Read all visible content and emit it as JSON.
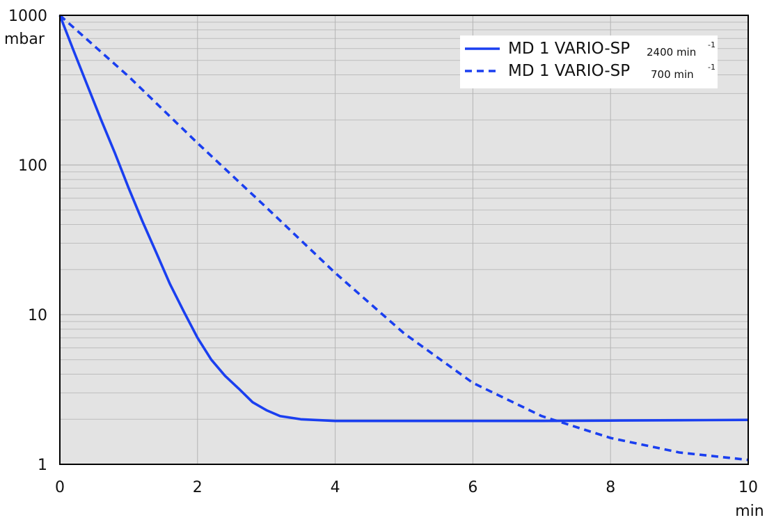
{
  "chart_data": {
    "type": "line",
    "title": "",
    "xlabel": "",
    "ylabel": "",
    "x_unit": "min",
    "y_unit": "mbar",
    "xlim": [
      0,
      10
    ],
    "ylim": [
      1,
      1000
    ],
    "yscale": "log",
    "grid": true,
    "legend_position": "top-right",
    "x_ticks": [
      "0",
      "2",
      "4",
      "6",
      "8",
      "10"
    ],
    "y_ticks": [
      "1",
      "10",
      "100",
      "1000"
    ],
    "series": [
      {
        "name": "MD 1 VARIO-SP",
        "speed": "2400 min",
        "speed_exp": "-1",
        "line_style": "solid",
        "color": "#1a3ff0",
        "x": [
          0,
          0.2,
          0.4,
          0.6,
          0.8,
          1.0,
          1.2,
          1.4,
          1.6,
          1.8,
          2.0,
          2.2,
          2.4,
          2.6,
          2.8,
          3.0,
          3.2,
          3.5,
          4.0,
          5.0,
          6.0,
          7.0,
          8.0,
          9.0,
          10.0
        ],
        "y": [
          1000,
          580,
          340,
          200,
          120,
          70,
          42,
          26,
          16,
          10.5,
          7.0,
          5.0,
          3.9,
          3.2,
          2.6,
          2.3,
          2.1,
          2.0,
          1.95,
          1.95,
          1.95,
          1.95,
          1.96,
          1.97,
          1.98
        ]
      },
      {
        "name": "MD 1 VARIO-SP",
        "speed": "700 min",
        "speed_exp": "-1",
        "line_style": "dashed",
        "color": "#1a3ff0",
        "x": [
          0,
          1,
          2,
          3,
          4,
          5,
          6,
          7,
          8,
          9,
          10
        ],
        "y": [
          1000,
          390,
          140,
          52,
          19,
          7.5,
          3.5,
          2.1,
          1.5,
          1.2,
          1.07
        ]
      }
    ]
  }
}
